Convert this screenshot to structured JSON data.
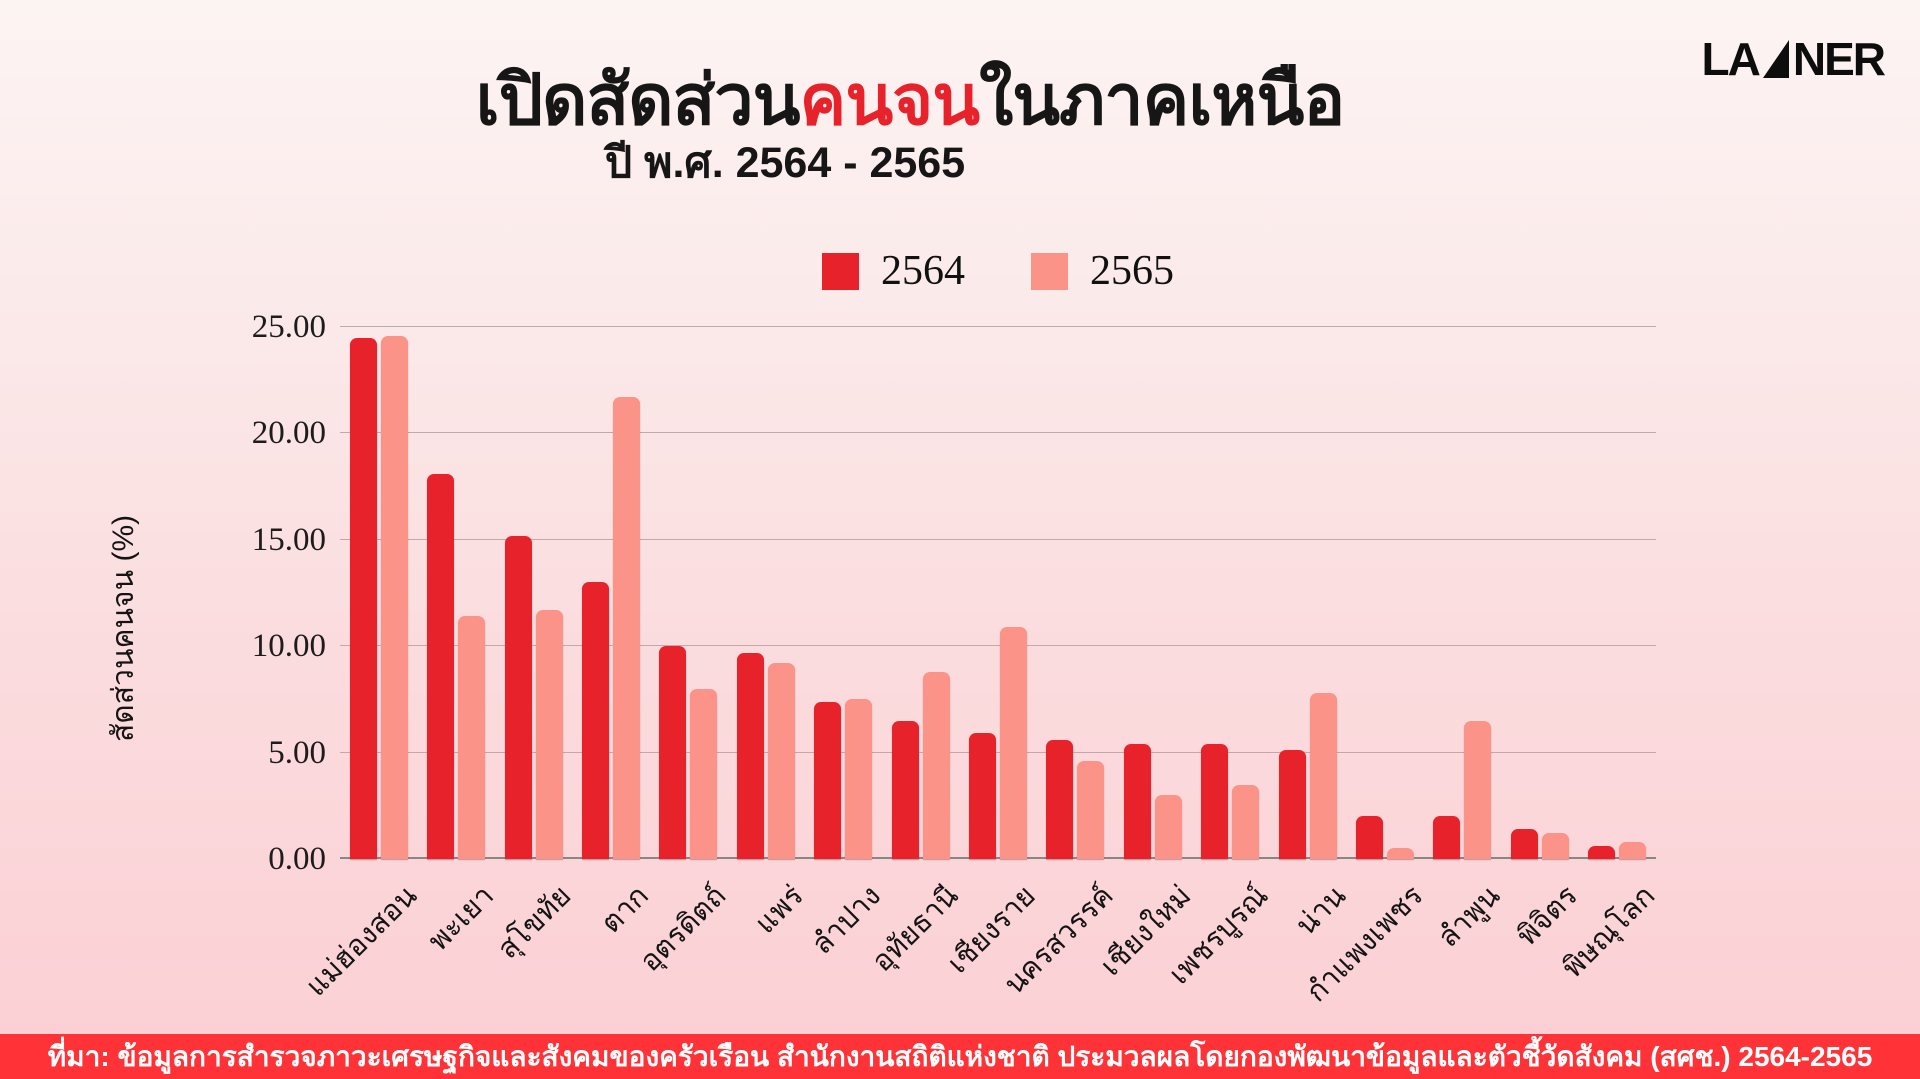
{
  "logo": {
    "text_left": "LA",
    "text_right": "NER",
    "color": "#0d0d0d"
  },
  "header": {
    "title_prefix": "เปิดสัดส่วน",
    "title_highlight": "คนจน",
    "title_suffix": "ในภาคเหนือ",
    "subtitle": "ปี พ.ศ. 2564 - 2565",
    "highlight_color": "#E8222B",
    "text_color": "#161616"
  },
  "footer": {
    "source_text": "ที่มา: ข้อมูลการสำรวจภาวะเศรษฐกิจและสังคมของครัวเรือน สำนักงานสถิติแห่งชาติ ประมวลผลโดยกองพัฒนาข้อมูลและตัวชี้วัดสังคม (สศช.) 2564-2565",
    "background_color": "#FF3237",
    "text_color": "#FFFFFF"
  },
  "chart_data": {
    "type": "bar",
    "title": "เปิดสัดส่วนคนจนในภาคเหนือ",
    "subtitle": "ปี พ.ศ. 2564 - 2565",
    "xlabel": "",
    "ylabel": "สัดส่วนคนจน (%)",
    "ylim": [
      0,
      25
    ],
    "yticks": [
      0,
      5,
      10,
      15,
      20,
      25
    ],
    "ytick_labels": [
      "0.00",
      "5.00",
      "10.00",
      "15.00",
      "20.00",
      "25.00"
    ],
    "grid": true,
    "legend_position": "top-center",
    "gridline_color": "#c3a8ab",
    "categories": [
      "แม่ฮ่องสอน",
      "พะเยา",
      "สุโขทัย",
      "ตาก",
      "อุตรดิตถ์",
      "แพร่",
      "ลำปาง",
      "อุทัยธานี",
      "เชียงราย",
      "นครสวรรค์",
      "เชียงใหม่",
      "เพชรบูรณ์",
      "น่าน",
      "กำแพงเพชร",
      "ลำพูน",
      "พิจิตร",
      "พิษณุโลก"
    ],
    "series": [
      {
        "name": "2564",
        "color": "#E8222B",
        "values": [
          24.5,
          18.1,
          15.2,
          13.0,
          10.0,
          9.7,
          7.4,
          6.5,
          5.9,
          5.6,
          5.4,
          5.4,
          5.1,
          2.0,
          2.0,
          1.4,
          0.6
        ]
      },
      {
        "name": "2565",
        "color": "#FB9388",
        "values": [
          24.6,
          11.4,
          11.7,
          21.7,
          8.0,
          9.2,
          7.5,
          8.8,
          10.9,
          4.6,
          3.0,
          3.5,
          7.8,
          0.5,
          6.5,
          1.2,
          0.8
        ]
      }
    ]
  }
}
